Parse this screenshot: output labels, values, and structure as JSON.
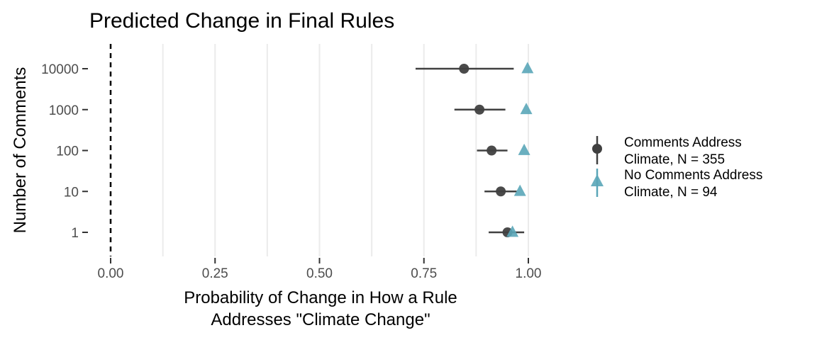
{
  "chart_data": {
    "type": "scatter",
    "title": "Predicted Change in Final Rules",
    "xlabel": [
      "Probability of Change in How a Rule",
      "Addresses \"Climate Change\""
    ],
    "ylabel": "Number of Comments",
    "xlim": [
      0,
      1
    ],
    "x_ticks": [
      0,
      0.25,
      0.5,
      0.75,
      1
    ],
    "x_tick_labels": [
      "0.00",
      "0.25",
      "0.50",
      "0.75",
      "1.00"
    ],
    "categories": [
      "1",
      "10",
      "100",
      "1000",
      "10000"
    ],
    "reference_line": {
      "x": 0,
      "style": "dashed"
    },
    "grid": "vertical",
    "legend_position": "right",
    "series": [
      {
        "name": [
          "Comments Address",
          "Climate, N = 355"
        ],
        "marker": "circle",
        "color": "#404040",
        "points": [
          {
            "category": "1",
            "value": 0.95,
            "low": 0.905,
            "high": 0.99
          },
          {
            "category": "10",
            "value": 0.934,
            "low": 0.895,
            "high": 0.972
          },
          {
            "category": "100",
            "value": 0.912,
            "low": 0.877,
            "high": 0.95
          },
          {
            "category": "1000",
            "value": 0.883,
            "low": 0.823,
            "high": 0.945
          },
          {
            "category": "10000",
            "value": 0.846,
            "low": 0.73,
            "high": 0.965
          }
        ]
      },
      {
        "name": [
          "No Comments Address",
          "Climate, N = 94"
        ],
        "marker": "triangle",
        "color": "#5aa6b8",
        "points": [
          {
            "category": "1",
            "value": 0.962,
            "low": 0.962,
            "high": 0.962
          },
          {
            "category": "10",
            "value": 0.98,
            "low": 0.98,
            "high": 0.98
          },
          {
            "category": "100",
            "value": 0.99,
            "low": 0.99,
            "high": 0.99
          },
          {
            "category": "1000",
            "value": 0.995,
            "low": 0.995,
            "high": 0.995
          },
          {
            "category": "10000",
            "value": 0.998,
            "low": 0.998,
            "high": 0.998
          }
        ]
      }
    ]
  }
}
